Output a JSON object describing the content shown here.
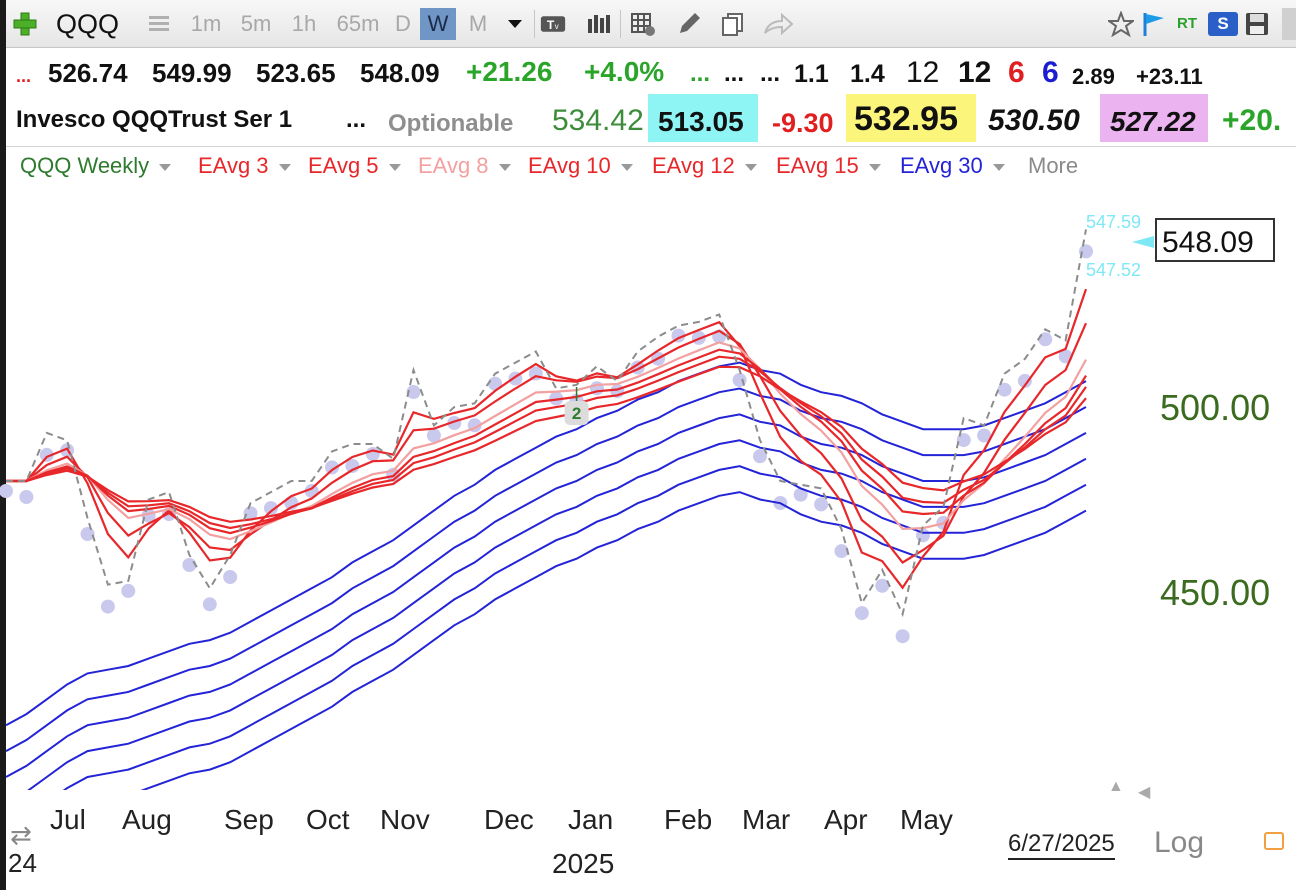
{
  "toolbar": {
    "symbol": "QQQ",
    "intervals": [
      "1m",
      "5m",
      "1h",
      "65m",
      "D",
      "W",
      "M"
    ],
    "active_interval": "W",
    "rt_label": "RT",
    "s_label": "S"
  },
  "quote_row1": {
    "lead": "...",
    "open": "526.74",
    "high": "549.99",
    "low": "523.65",
    "close": "548.09",
    "change": "+21.26",
    "change_pct": "+4.0%",
    "dots_green": "...",
    "dots2": "...",
    "dots3": "...",
    "v1": "1.1",
    "v2": "1.4",
    "v3": "12",
    "v4": "12",
    "v5": "6",
    "v6": "6",
    "v7": "2.89",
    "v8": "+23.11"
  },
  "quote_row2": {
    "name": "Invesco QQQTrust Ser 1",
    "dots": "...",
    "optionable": "Optionable",
    "v1": "534.42",
    "v2": "513.05",
    "v3": "-9.30",
    "v4": "532.95",
    "v5": "530.50",
    "v6": "527.22",
    "v7": "+20."
  },
  "legend": {
    "series_label": "QQQ Weekly",
    "eavg3": "EAvg 3",
    "eavg5": "EAvg 5",
    "eavg8": "EAvg 8",
    "eavg10": "EAvg 10",
    "eavg12": "EAvg 12",
    "eavg15": "EAvg 15",
    "eavg30": "EAvg 30",
    "more": "More"
  },
  "colors": {
    "ema_red": "#e8272a",
    "ema_pink": "#f3a0a0",
    "ema_blue": "#2323d8",
    "price_line": "#8c8c8c",
    "dots": "#c9c9ee",
    "price_label_bg": "#ffffff",
    "cyan": "#7ee8f5",
    "axis_green": "#3a6b1f"
  },
  "chart_data": {
    "type": "line",
    "x": [
      "2024-06-21",
      "2024-06-28",
      "2024-07-05",
      "2024-07-12",
      "2024-07-19",
      "2024-07-26",
      "2024-08-02",
      "2024-08-09",
      "2024-08-16",
      "2024-08-23",
      "2024-08-30",
      "2024-09-06",
      "2024-09-13",
      "2024-09-20",
      "2024-09-27",
      "2024-10-04",
      "2024-10-11",
      "2024-10-18",
      "2024-10-25",
      "2024-11-01",
      "2024-11-08",
      "2024-11-15",
      "2024-11-22",
      "2024-11-29",
      "2024-12-06",
      "2024-12-13",
      "2024-12-20",
      "2024-12-27",
      "2025-01-03",
      "2025-01-10",
      "2025-01-17",
      "2025-01-24",
      "2025-01-31",
      "2025-02-07",
      "2025-02-14",
      "2025-02-21",
      "2025-02-28",
      "2025-03-07",
      "2025-03-14",
      "2025-03-21",
      "2025-03-28",
      "2025-04-04",
      "2025-04-11",
      "2025-04-18",
      "2025-04-25",
      "2025-05-02",
      "2025-05-09",
      "2025-05-16",
      "2025-05-23",
      "2025-05-30",
      "2025-06-06",
      "2025-06-13",
      "2025-06-20",
      "2025-06-27"
    ],
    "series": [
      {
        "name": "QQQ Weekly",
        "values": [
          480,
          480,
          493,
          491,
          470,
          452,
          453,
          475,
          477,
          460,
          451,
          460,
          474,
          477,
          480,
          480,
          488,
          490,
          490,
          486,
          510,
          495,
          500,
          501,
          509,
          512,
          515,
          505,
          506,
          511,
          507,
          515,
          519,
          522,
          523,
          525,
          510,
          491,
          480,
          479,
          478,
          467,
          447,
          456,
          444,
          468,
          473,
          497,
          495,
          509,
          513,
          521,
          518,
          548
        ]
      },
      {
        "name": "EAvg 30",
        "values": [
          414,
          417,
          421,
          425,
          428,
          429,
          430,
          432,
          434,
          436,
          437,
          439,
          442,
          445,
          448,
          451,
          454,
          458,
          461,
          464,
          468,
          472,
          476,
          479,
          483,
          486,
          489,
          492,
          494,
          497,
          499,
          502,
          504,
          507,
          509,
          511,
          512,
          510,
          509,
          506,
          504,
          503,
          501,
          498,
          496,
          494,
          494,
          494,
          495,
          497,
          499,
          501,
          504,
          507
        ]
      }
    ],
    "ylim": [
      420,
      565
    ],
    "y_ticks": [
      450,
      500
    ],
    "x_tick_labels": [
      "Jul",
      "Aug",
      "Sep",
      "Oct",
      "Nov",
      "Dec",
      "Jan",
      "Feb",
      "Mar",
      "Apr",
      "May"
    ],
    "year_label": "2025",
    "left_year": "24",
    "current_price": "548.09",
    "cyan_labels": [
      "547.59",
      "547.52"
    ],
    "marker_label": "2",
    "date_label": "6/27/2025",
    "log_label": "Log",
    "grid": false
  }
}
